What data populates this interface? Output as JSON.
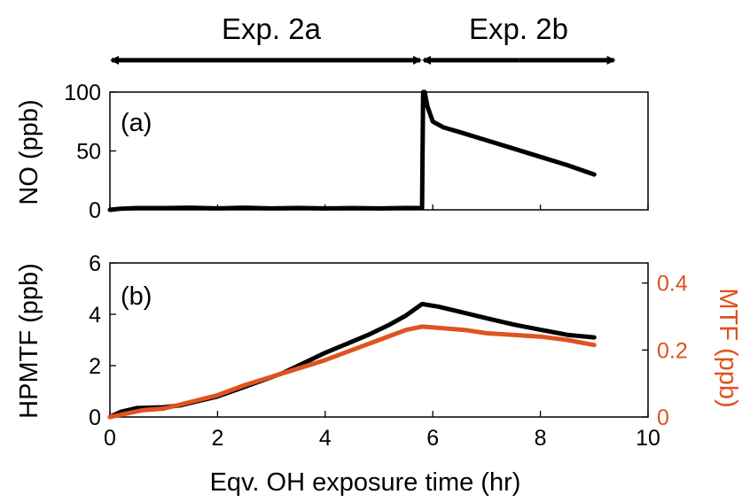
{
  "colors": {
    "black": "#000000",
    "orange": "#e0521f"
  },
  "experiments": [
    {
      "label": "Exp. 2a",
      "x_start": 0,
      "x_end": 5.8
    },
    {
      "label": "Exp. 2b",
      "x_start": 5.8,
      "x_end": 9.4
    }
  ],
  "chart_data": [
    {
      "type": "line",
      "panel_label": "(a)",
      "ylabel": "NO (ppb)",
      "xlim": [
        0,
        10
      ],
      "ylim": [
        0,
        100
      ],
      "yticks": [
        "0",
        "50",
        "100"
      ],
      "series": [
        {
          "color": "#000000",
          "x": [
            0,
            0.2,
            0.5,
            1,
            1.5,
            2,
            2.5,
            3,
            3.5,
            4,
            4.5,
            5,
            5.5,
            5.75,
            5.8,
            5.82,
            5.85,
            5.9,
            6.0,
            6.2,
            6.5,
            7,
            7.5,
            8,
            8.5,
            9.0
          ],
          "values": [
            0,
            1,
            1.5,
            1.5,
            1.8,
            1.2,
            1.8,
            1.2,
            1.6,
            1.2,
            1.5,
            1.2,
            1.6,
            1.5,
            1.5,
            100,
            100,
            88,
            75,
            70,
            66,
            59,
            52,
            45,
            38,
            30
          ]
        }
      ]
    },
    {
      "type": "line",
      "panel_label": "(b)",
      "xlabel": "Eqv. OH exposure time (hr)",
      "ylabel": "HPMTF (ppb)",
      "ylabel_right": "MTF (ppb)",
      "xlim": [
        0,
        10
      ],
      "ylim": [
        0,
        6
      ],
      "ylim_right": [
        0,
        0.46
      ],
      "xticks": [
        "0",
        "2",
        "4",
        "6",
        "8",
        "10"
      ],
      "yticks": [
        "0",
        "2",
        "4",
        "6"
      ],
      "yticks_right": [
        "0",
        "0.2",
        "0.4"
      ],
      "series": [
        {
          "color": "#000000",
          "axis": "left",
          "x": [
            0,
            0.2,
            0.5,
            1,
            1.3,
            1.6,
            2,
            2.4,
            2.8,
            3.2,
            3.6,
            4,
            4.4,
            4.8,
            5.2,
            5.5,
            5.8,
            6.1,
            6.5,
            7,
            7.5,
            8,
            8.5,
            9.0
          ],
          "values": [
            0,
            0.2,
            0.35,
            0.38,
            0.45,
            0.6,
            0.8,
            1.1,
            1.4,
            1.7,
            2.1,
            2.5,
            2.85,
            3.2,
            3.6,
            3.95,
            4.4,
            4.3,
            4.1,
            3.85,
            3.6,
            3.4,
            3.2,
            3.1
          ]
        },
        {
          "color": "#e0521f",
          "axis": "right",
          "x": [
            0,
            0.3,
            0.6,
            1,
            1.5,
            2,
            2.5,
            3,
            3.5,
            4,
            4.5,
            5,
            5.5,
            5.8,
            6.2,
            6.6,
            7,
            7.5,
            8,
            8.5,
            9.0
          ],
          "values": [
            0,
            0.01,
            0.02,
            0.025,
            0.045,
            0.065,
            0.095,
            0.12,
            0.145,
            0.17,
            0.2,
            0.23,
            0.26,
            0.27,
            0.265,
            0.26,
            0.25,
            0.245,
            0.24,
            0.23,
            0.215
          ]
        }
      ]
    }
  ]
}
